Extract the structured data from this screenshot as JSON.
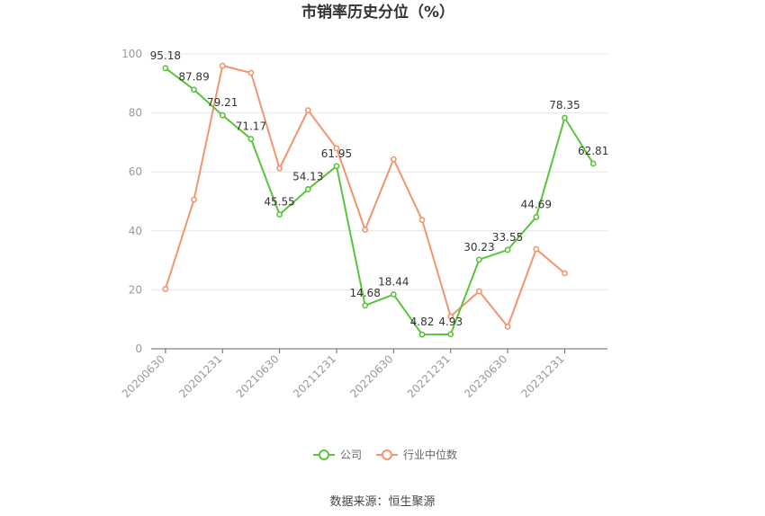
{
  "chart_data": {
    "type": "line",
    "title": "市销率历史分位（%）",
    "x": [
      "20200630",
      "20200930",
      "20201231",
      "20210331",
      "20210630",
      "20210930",
      "20211231",
      "20220331",
      "20220630",
      "20220930",
      "20221231",
      "20230331",
      "20230630",
      "20230930",
      "20231231",
      "20240331"
    ],
    "x_tick_labels": [
      "20200630",
      "20201231",
      "20210630",
      "20211231",
      "20220630",
      "20221231",
      "20230630",
      "20231231"
    ],
    "ylim": [
      0,
      100
    ],
    "yticks": [
      0,
      20,
      40,
      60,
      80,
      100
    ],
    "grid": true,
    "legend_position": "bottom",
    "series": [
      {
        "name": "公司",
        "color": "#5ac43a",
        "values": [
          95.18,
          87.89,
          79.21,
          71.17,
          45.55,
          54.13,
          61.95,
          14.68,
          18.44,
          4.82,
          4.93,
          30.23,
          33.55,
          44.69,
          78.35,
          62.81
        ],
        "labels": [
          "95.18",
          "87.89",
          "79.21",
          "71.17",
          "45.55",
          "54.13",
          "61.95",
          "14.68",
          "18.44",
          "4.82",
          "4.93",
          "30.23",
          "33.55",
          "44.69",
          "78.35",
          "62.81"
        ]
      },
      {
        "name": "行业中位数",
        "color": "#f2956c",
        "values": [
          20.3,
          50.6,
          96.0,
          93.6,
          61.2,
          80.9,
          68.0,
          40.4,
          64.3,
          43.7,
          11.0,
          19.5,
          7.5,
          33.8,
          25.6,
          null
        ]
      }
    ]
  },
  "source": "数据来源：恒生聚源"
}
